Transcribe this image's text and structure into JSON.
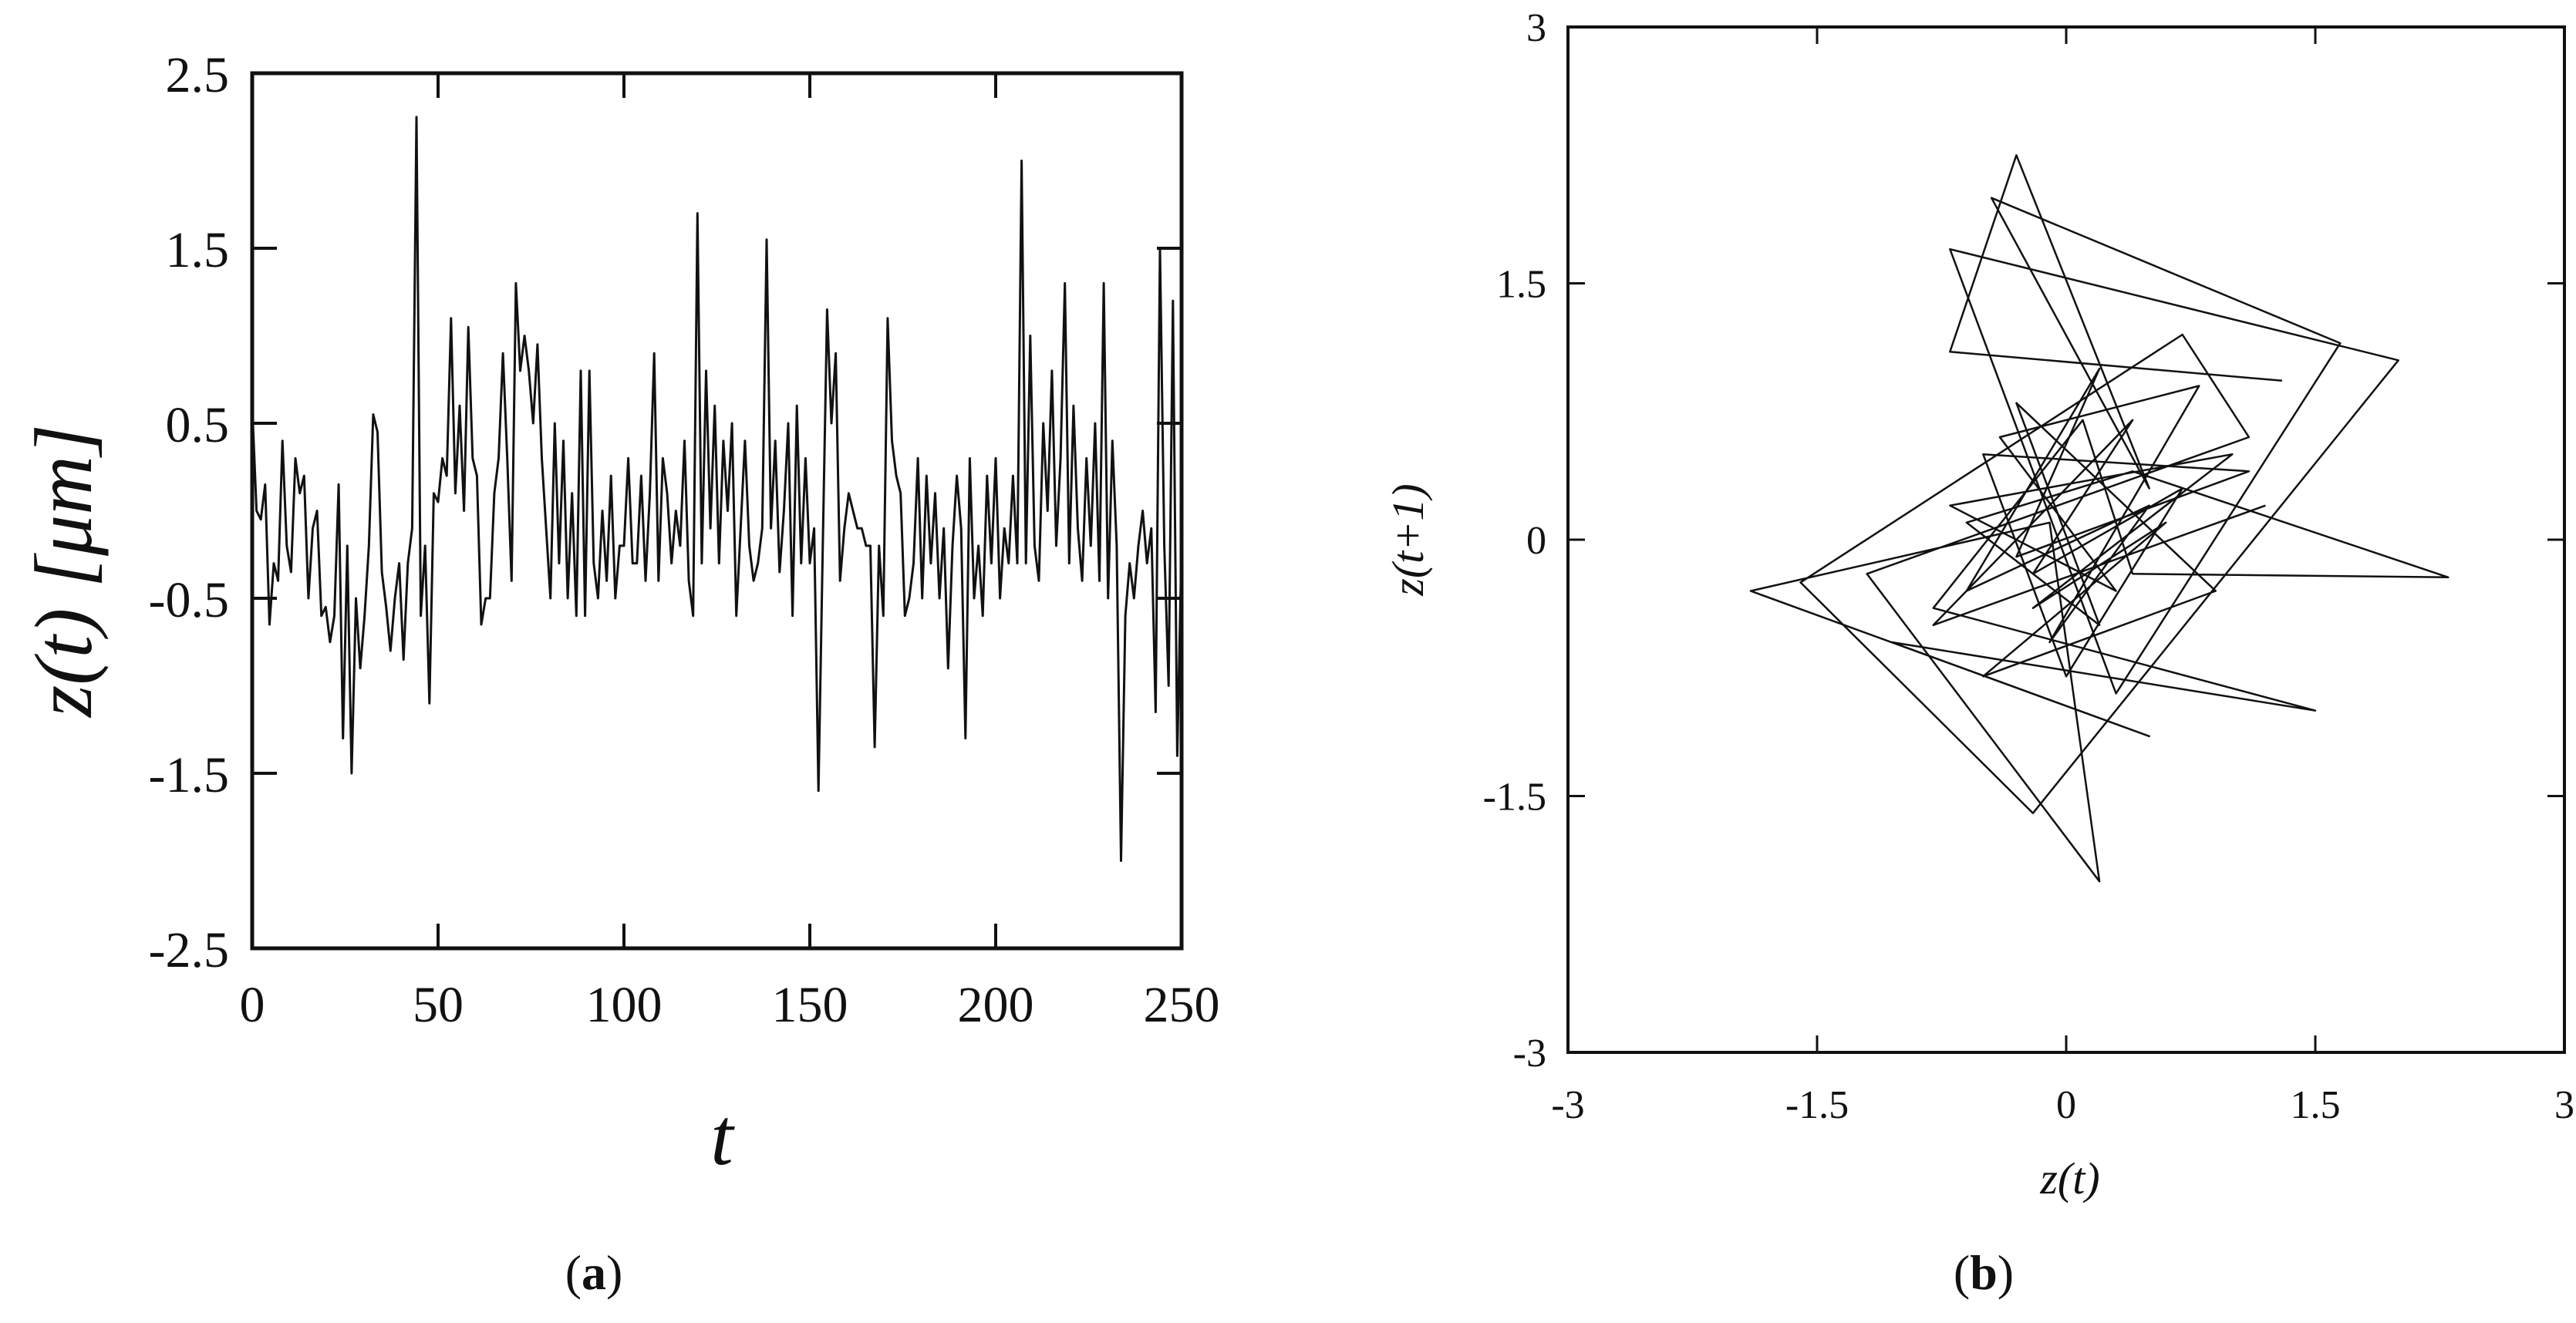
{
  "figure": {
    "panel_a_label": "(a)",
    "panel_b_label": "(b)",
    "panel_a_label_parts": {
      "open": "(",
      "letter": "a",
      "close": ")"
    },
    "panel_b_label_parts": {
      "open": "(",
      "letter": "b",
      "close": ")"
    }
  },
  "chart_data": [
    {
      "id": "a",
      "type": "line",
      "title": "",
      "xlabel": "t",
      "ylabel": "z(t) [μm]",
      "xlim": [
        0,
        250
      ],
      "ylim": [
        -2.5,
        2.5
      ],
      "xticks": [
        "0",
        "50",
        "100",
        "150",
        "200",
        "250"
      ],
      "yticks": [
        "2.5",
        "1.5",
        "0.5",
        "-0.5",
        "-1.5",
        "-2.5"
      ],
      "xtick_values": [
        0,
        50,
        100,
        150,
        200,
        250
      ],
      "ytick_values": [
        2.5,
        1.5,
        0.5,
        -0.5,
        -1.5,
        -2.5
      ],
      "color": "#111111",
      "series": [
        {
          "values": [
            0.6,
            0.0,
            -0.05,
            0.15,
            -0.65,
            -0.3,
            -0.4,
            0.4,
            -0.2,
            -0.35,
            0.3,
            0.1,
            0.2,
            -0.5,
            -0.1,
            0.0,
            -0.6,
            -0.55,
            -0.75,
            -0.6,
            0.15,
            -1.3,
            -0.2,
            -1.5,
            -0.5,
            -0.9,
            -0.6,
            -0.2,
            0.55,
            0.45,
            -0.35,
            -0.55,
            -0.8,
            -0.5,
            -0.3,
            -0.85,
            -0.3,
            -0.1,
            2.25,
            -0.6,
            -0.2,
            -1.1,
            0.1,
            0.05,
            0.3,
            0.2,
            1.1,
            0.1,
            0.6,
            0.0,
            1.05,
            0.3,
            0.2,
            -0.65,
            -0.5,
            -0.5,
            0.1,
            0.3,
            0.9,
            0.3,
            -0.4,
            1.3,
            0.8,
            1.0,
            0.8,
            0.5,
            0.95,
            0.3,
            -0.1,
            -0.5,
            0.5,
            -0.3,
            0.4,
            -0.5,
            0.1,
            -0.6,
            0.8,
            -0.6,
            0.8,
            -0.3,
            -0.5,
            0.0,
            -0.4,
            0.2,
            -0.5,
            -0.2,
            -0.2,
            0.3,
            -0.3,
            -0.3,
            0.2,
            -0.4,
            0.1,
            0.9,
            -0.4,
            0.3,
            0.1,
            -0.3,
            0.0,
            -0.2,
            0.4,
            -0.4,
            -0.6,
            1.7,
            -0.3,
            0.8,
            -0.1,
            0.6,
            -0.3,
            0.4,
            0.0,
            0.5,
            -0.6,
            -0.1,
            0.4,
            -0.2,
            -0.4,
            -0.3,
            -0.1,
            1.55,
            -0.1,
            0.4,
            -0.35,
            0.0,
            0.5,
            -0.6,
            0.6,
            -0.3,
            0.3,
            -0.3,
            -0.1,
            -1.6,
            -0.2,
            1.15,
            0.5,
            0.9,
            -0.4,
            -0.1,
            0.1,
            0.0,
            -0.1,
            -0.1,
            -0.2,
            -0.2,
            -1.35,
            -0.2,
            -0.6,
            1.1,
            0.4,
            0.2,
            0.1,
            -0.6,
            -0.5,
            -0.3,
            0.3,
            -0.5,
            0.2,
            -0.3,
            0.1,
            -0.5,
            -0.1,
            -0.9,
            -0.2,
            0.2,
            -0.1,
            -1.3,
            0.3,
            -0.5,
            -0.2,
            -0.6,
            0.2,
            -0.3,
            0.3,
            -0.5,
            -0.1,
            -0.3,
            0.2,
            -0.3,
            2.0,
            -0.3,
            1.0,
            -0.2,
            -0.4,
            0.5,
            0.0,
            0.8,
            -0.2,
            0.3,
            1.3,
            -0.3,
            0.6,
            -0.1,
            -0.4,
            0.3,
            -0.2,
            0.5,
            -0.4,
            1.3,
            -0.5,
            0.4,
            -0.2,
            -2.0,
            -0.6,
            -0.3,
            -0.5,
            -0.2,
            0.0,
            -0.3,
            -0.1,
            -1.15,
            1.5,
            -0.2,
            -1.0,
            1.2,
            -1.4,
            -0.2
          ]
        }
      ]
    },
    {
      "id": "b",
      "type": "line",
      "title": "",
      "xlabel": "z(t)",
      "ylabel": "z(t+1)",
      "xlim": [
        -3,
        3
      ],
      "ylim": [
        -3,
        3
      ],
      "xticks": [
        "-3",
        "-1.5",
        "0",
        "1.5",
        "3"
      ],
      "yticks": [
        "3",
        "1.5",
        "0",
        "-1.5",
        "-3"
      ],
      "xtick_values": [
        -3,
        -1.5,
        0,
        1.5,
        3
      ],
      "ytick_values": [
        3,
        1.5,
        0,
        -1.5,
        -3
      ],
      "color": "#111111",
      "series": [
        {
          "points": [
            [
              1.3,
              0.93
            ],
            [
              -0.7,
              1.1
            ],
            [
              -0.3,
              2.25
            ],
            [
              0.5,
              0.3
            ],
            [
              -0.45,
              2.0
            ],
            [
              1.65,
              1.15
            ],
            [
              0.3,
              -0.9
            ],
            [
              -0.7,
              1.7
            ],
            [
              2.0,
              1.05
            ],
            [
              -0.2,
              -1.6
            ],
            [
              -1.6,
              -0.25
            ],
            [
              0.7,
              1.2
            ],
            [
              1.1,
              0.6
            ],
            [
              -1.2,
              -0.2
            ],
            [
              0.2,
              -2.0
            ],
            [
              -0.1,
              0.1
            ],
            [
              -1.9,
              -0.3
            ],
            [
              0.5,
              -1.15
            ],
            [
              -1.05,
              -0.6
            ],
            [
              1.5,
              -1.0
            ],
            [
              -0.8,
              -0.4
            ],
            [
              0.1,
              0.7
            ],
            [
              0.4,
              -0.2
            ],
            [
              2.3,
              -0.22
            ],
            [
              0.4,
              0.4
            ],
            [
              -0.6,
              0.1
            ],
            [
              0.2,
              -0.5
            ],
            [
              -0.3,
              0.8
            ],
            [
              0.9,
              -0.3
            ],
            [
              -0.5,
              -0.8
            ],
            [
              0.6,
              0.1
            ],
            [
              -0.2,
              -0.4
            ],
            [
              1.0,
              0.5
            ],
            [
              -0.7,
              0.2
            ],
            [
              0.3,
              -0.3
            ],
            [
              -0.4,
              0.6
            ],
            [
              0.8,
              0.9
            ],
            [
              -0.1,
              -0.6
            ],
            [
              0.5,
              0.2
            ],
            [
              -0.6,
              -0.3
            ],
            [
              0.2,
              1.0
            ],
            [
              -0.3,
              -0.1
            ],
            [
              1.1,
              0.4
            ],
            [
              -0.5,
              0.5
            ],
            [
              0.0,
              -0.8
            ],
            [
              0.7,
              0.3
            ],
            [
              -0.2,
              -0.2
            ],
            [
              0.4,
              0.7
            ],
            [
              -0.8,
              -0.5
            ],
            [
              1.2,
              0.2
            ]
          ]
        }
      ]
    }
  ]
}
